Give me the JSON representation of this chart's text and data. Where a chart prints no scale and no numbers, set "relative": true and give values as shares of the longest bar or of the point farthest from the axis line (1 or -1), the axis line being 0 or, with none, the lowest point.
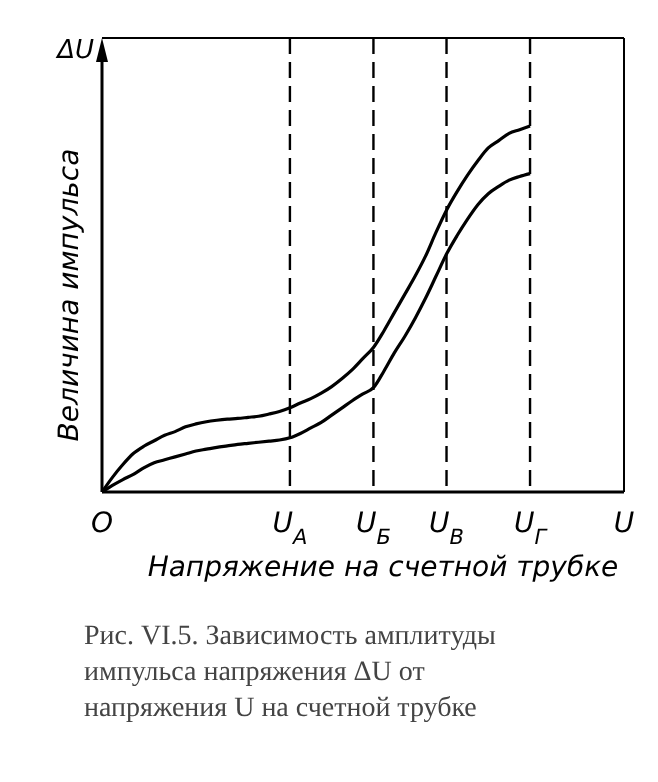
{
  "chart_data": {
    "type": "line",
    "relative": true,
    "xlabel": "Напряжение на счетной трубке",
    "ylabel": "Величина импульса",
    "categories": [
      "O",
      null,
      null,
      null,
      null,
      null,
      null,
      null,
      null,
      null,
      null,
      null,
      null,
      null,
      null,
      null,
      null,
      null,
      "U$_{A}$",
      null,
      null,
      null,
      null,
      null,
      null,
      null,
      "U$_{Б}$",
      null,
      null,
      null,
      null,
      null,
      null,
      "U$_{В}$",
      null,
      null,
      null,
      null,
      null,
      null,
      null,
      "U$_{Г}$",
      null,
      null,
      null,
      null,
      null,
      null,
      null,
      null,
      "U"
    ],
    "series": [
      {
        "color": "#000000",
        "values": [
          0,
          0.04,
          0.075,
          0.105,
          0.125,
          0.14,
          0.155,
          0.165,
          0.178,
          0.186,
          0.192,
          0.196,
          0.199,
          0.201,
          0.204,
          0.207,
          0.213,
          0.22,
          0.23,
          0.243,
          0.255,
          0.27,
          0.288,
          0.31,
          0.335,
          0.365,
          0.395,
          0.44,
          0.49,
          0.54,
          0.59,
          0.645,
          0.71,
          0.77,
          0.82,
          0.865,
          0.905,
          0.94,
          0.96,
          0.98,
          0.99,
          1,
          null,
          null,
          null,
          null,
          null,
          null,
          null,
          null,
          null
        ]
      },
      {
        "color": "#000000",
        "values": [
          0,
          0.018,
          0.034,
          0.048,
          0.066,
          0.08,
          0.088,
          0.096,
          0.104,
          0.112,
          0.117,
          0.122,
          0.126,
          0.13,
          0.133,
          0.136,
          0.139,
          0.142,
          0.148,
          0.16,
          0.175,
          0.19,
          0.21,
          0.23,
          0.25,
          0.268,
          0.285,
          0.33,
          0.38,
          0.425,
          0.475,
          0.53,
          0.59,
          0.65,
          0.7,
          0.745,
          0.785,
          0.815,
          0.835,
          0.852,
          0.862,
          0.87,
          null,
          null,
          null,
          null,
          null,
          null,
          null,
          null,
          null
        ]
      }
    ],
    "ref_lines": [
      {
        "axis": "x",
        "value": "U$_{A}$",
        "label": null,
        "line_style": "dashed",
        "color": "#000000"
      },
      {
        "axis": "x",
        "value": "U$_{Б}$",
        "label": null,
        "line_style": "dashed",
        "color": "#000000"
      },
      {
        "axis": "x",
        "value": "U$_{В}$",
        "label": null,
        "line_style": "dashed",
        "color": "#000000"
      },
      {
        "axis": "x",
        "value": "U$_{Г}$",
        "label": null,
        "line_style": "dashed",
        "color": "#000000"
      }
    ],
    "annotations": [
      "ΔU",
      "Рис. VI.5. Зависимость амплитуды импульса напряжения ΔU от напряжения U на счетной трубке"
    ]
  }
}
